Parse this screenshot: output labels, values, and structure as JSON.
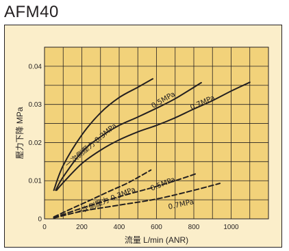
{
  "model": "AFM40",
  "colors": {
    "plot_bg": "#f2d27a",
    "frame_bg": "#fbeeca",
    "grid": "#231f20",
    "line": "#231f20"
  },
  "chart_data": {
    "type": "line",
    "title": "",
    "xlabel": "流量 L/min (ANR)",
    "ylabel": "壓力下降 MPa",
    "xlim": [
      0,
      1200
    ],
    "ylim": [
      0,
      0.045
    ],
    "x_ticks": [
      "0",
      "200",
      "400",
      "600",
      "800",
      "1000"
    ],
    "y_ticks": [
      "0",
      "0.01",
      "0.02",
      "0.03",
      "0.04"
    ],
    "grid": true,
    "groups": [
      {
        "label": "一次側壓力 0.3MPa",
        "style": "solid"
      },
      {
        "label": "一次側壓力 0.3MPa",
        "style": "dashed"
      }
    ],
    "series": [
      {
        "name": "0.3MPa",
        "style": "solid",
        "x": [
          50,
          100,
          200,
          300,
          400,
          500,
          580
        ],
        "y": [
          0.0075,
          0.014,
          0.022,
          0.0278,
          0.0318,
          0.0345,
          0.0367
        ]
      },
      {
        "name": "0.5MPa",
        "style": "solid",
        "x": [
          60,
          100,
          200,
          300,
          400,
          500,
          600,
          700,
          840
        ],
        "y": [
          0.0075,
          0.011,
          0.0175,
          0.0215,
          0.0245,
          0.0267,
          0.029,
          0.0315,
          0.0357
        ]
      },
      {
        "name": "0.7MPa",
        "style": "solid",
        "x": [
          65,
          100,
          200,
          300,
          400,
          500,
          600,
          700,
          800,
          900,
          1000,
          1100
        ],
        "y": [
          0.0075,
          0.0095,
          0.0145,
          0.018,
          0.0207,
          0.0228,
          0.0245,
          0.0265,
          0.0288,
          0.031,
          0.0335,
          0.0358
        ]
      },
      {
        "name": "0.3MPa",
        "style": "dashed",
        "x": [
          50,
          150,
          250,
          350,
          450,
          570
        ],
        "y": [
          0.0005,
          0.0028,
          0.005,
          0.0073,
          0.0095,
          0.0128
        ]
      },
      {
        "name": "0.5MPa",
        "style": "dashed",
        "x": [
          50,
          200,
          400,
          600,
          720,
          810
        ],
        "y": [
          0.0003,
          0.0028,
          0.0058,
          0.0085,
          0.0103,
          0.0118
        ]
      },
      {
        "name": "0.7MPa",
        "style": "dashed",
        "x": [
          50,
          200,
          400,
          600,
          800,
          940
        ],
        "y": [
          0.0002,
          0.002,
          0.0036,
          0.0052,
          0.0075,
          0.0093
        ]
      }
    ]
  }
}
